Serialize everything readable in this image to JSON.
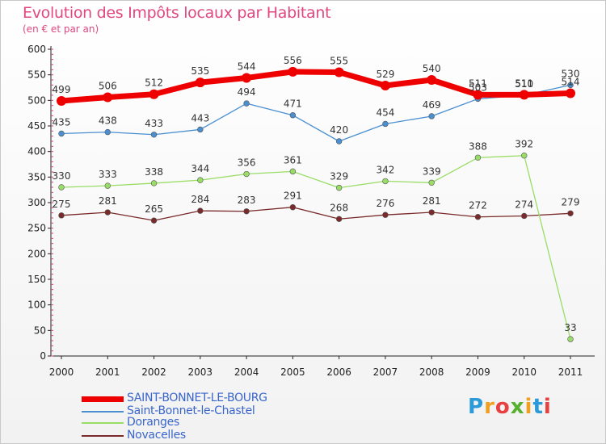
{
  "header": {
    "title": "Evolution des Impôts locaux par Habitant",
    "subtitle": "(en € et par an)"
  },
  "brand": {
    "text": "Proxiti",
    "letters": [
      "P",
      "r",
      "o",
      "x",
      "i",
      "t",
      "i"
    ],
    "colors": [
      "#2a9ad8",
      "#f0a020",
      "#e84040",
      "#58b030",
      "#f0a020",
      "#2a9ad8",
      "#e84040"
    ]
  },
  "chart_data": {
    "type": "line",
    "title": "Evolution des Impôts locaux par Habitant",
    "subtitle": "(en € et par an)",
    "xlabel": "",
    "ylabel": "",
    "ylim": [
      0,
      600
    ],
    "yticks": [
      0,
      50,
      100,
      150,
      200,
      250,
      300,
      350,
      400,
      450,
      500,
      550,
      600
    ],
    "grid": false,
    "legend_position": "bottom-left",
    "x": [
      "2000",
      "2001",
      "2002",
      "2003",
      "2004",
      "2005",
      "2006",
      "2007",
      "2008",
      "2009",
      "2010",
      "2011"
    ],
    "series": [
      {
        "name": "SAINT-BONNET-LE-BOURG",
        "color": "#ee0000",
        "values": [
          499,
          506,
          512,
          535,
          544,
          556,
          555,
          529,
          540,
          511,
          511,
          514
        ]
      },
      {
        "name": "Saint-Bonnet-le-Chastel",
        "color": "#4a8fd0",
        "values": [
          435,
          438,
          433,
          443,
          494,
          471,
          420,
          454,
          469,
          503,
          510,
          530
        ]
      },
      {
        "name": "Doranges",
        "color": "#99dd66",
        "values": [
          330,
          333,
          338,
          344,
          356,
          361,
          329,
          342,
          339,
          388,
          392,
          33
        ]
      },
      {
        "name": "Novacelles",
        "color": "#7a2a2a",
        "values": [
          275,
          281,
          265,
          284,
          283,
          291,
          268,
          276,
          281,
          272,
          274,
          279
        ]
      }
    ]
  }
}
